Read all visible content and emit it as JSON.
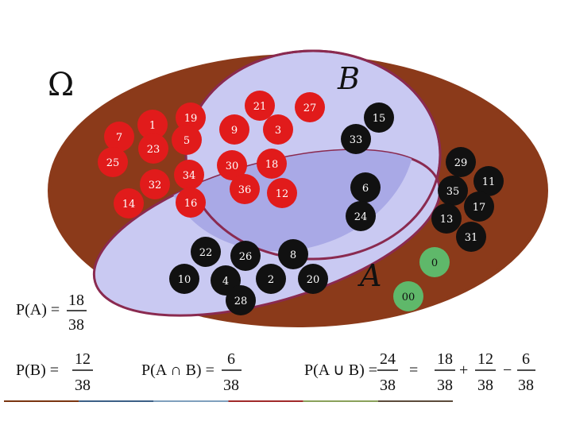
{
  "omega_label": "Ω",
  "set_b_label": "B",
  "set_a_label": "A",
  "colors": {
    "omega_border": "#8b3a1a",
    "set_b_fill": "#c9c9f2",
    "set_b_border": "#8a2a50",
    "set_a_fill": "#c9c9f2",
    "set_a_border": "#8a2a50",
    "intersection_fill": "#a9a9e6",
    "ball_red": "#e11b1b",
    "ball_black": "#111111",
    "ball_green": "#5fb86a",
    "ball_text_light": "#ffffff",
    "ball_text_dark": "#111111"
  },
  "balls": [
    {
      "label": "7",
      "color": "red"
    },
    {
      "label": "1",
      "color": "red"
    },
    {
      "label": "19",
      "color": "red"
    },
    {
      "label": "25",
      "color": "red"
    },
    {
      "label": "23",
      "color": "red"
    },
    {
      "label": "5",
      "color": "red"
    },
    {
      "label": "14",
      "color": "red"
    },
    {
      "label": "32",
      "color": "red"
    },
    {
      "label": "34",
      "color": "red"
    },
    {
      "label": "16",
      "color": "red"
    },
    {
      "label": "9",
      "color": "red"
    },
    {
      "label": "21",
      "color": "red"
    },
    {
      "label": "3",
      "color": "red"
    },
    {
      "label": "27",
      "color": "red"
    },
    {
      "label": "30",
      "color": "red"
    },
    {
      "label": "18",
      "color": "red"
    },
    {
      "label": "36",
      "color": "red"
    },
    {
      "label": "12",
      "color": "red"
    },
    {
      "label": "15",
      "color": "black"
    },
    {
      "label": "33",
      "color": "black"
    },
    {
      "label": "6",
      "color": "black"
    },
    {
      "label": "24",
      "color": "black"
    },
    {
      "label": "29",
      "color": "black"
    },
    {
      "label": "11",
      "color": "black"
    },
    {
      "label": "35",
      "color": "black"
    },
    {
      "label": "17",
      "color": "black"
    },
    {
      "label": "13",
      "color": "black"
    },
    {
      "label": "31",
      "color": "black"
    },
    {
      "label": "22",
      "color": "black"
    },
    {
      "label": "26",
      "color": "black"
    },
    {
      "label": "8",
      "color": "black"
    },
    {
      "label": "10",
      "color": "black"
    },
    {
      "label": "4",
      "color": "black"
    },
    {
      "label": "2",
      "color": "black"
    },
    {
      "label": "20",
      "color": "black"
    },
    {
      "label": "28",
      "color": "black"
    },
    {
      "label": "0",
      "color": "green"
    },
    {
      "label": "00",
      "color": "green"
    }
  ],
  "formulas": {
    "p_a": {
      "lhs": "P(A) =",
      "num": "18",
      "den": "38"
    },
    "p_b": {
      "lhs": "P(B) =",
      "num": "12",
      "den": "38"
    },
    "p_a_and_b": {
      "lhs": "P(A ∩ B) =",
      "num": "6",
      "den": "38"
    },
    "p_a_or_b": {
      "lhs": "P(A ∪ B) =",
      "num": "24",
      "den": "38"
    },
    "p_a_or_b_equals": "=",
    "term1": {
      "num": "18",
      "den": "38"
    },
    "plus": "+",
    "term2": {
      "num": "12",
      "den": "38"
    },
    "minus": "−",
    "term3": {
      "num": "6",
      "den": "38"
    }
  },
  "bottom_rule_colors": [
    "#7a3510",
    "#3c5f86",
    "#7f9fbd",
    "#a02a2a",
    "#8aa05a",
    "#5b4a3a"
  ]
}
